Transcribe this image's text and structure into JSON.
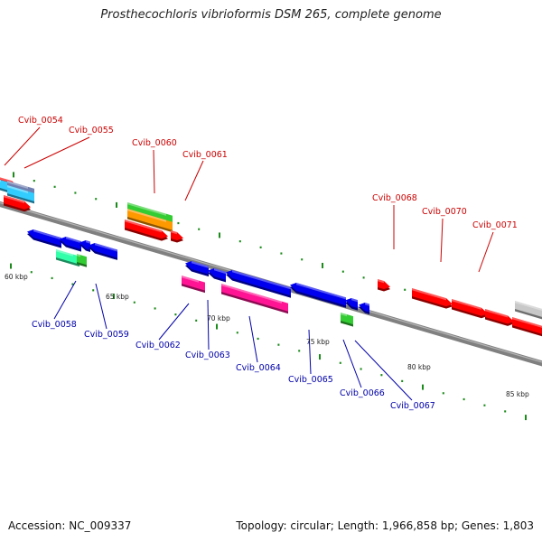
{
  "title": "Prosthecochloris vibrioformis DSM 265, complete genome",
  "footer": {
    "accession": "Accession: NC_009337",
    "topology": "Topology: circular; Length: 1,966,858 bp; Genes: 1,803"
  },
  "colors": {
    "backbone": "#808080",
    "tick": "#1a8a1a",
    "forward_label": "#cc0000",
    "reverse_label": "#0000aa",
    "red": "#ff0000",
    "blue": "#0000ee",
    "magenta": "#ff1493",
    "green": "#33cc33",
    "aqua": "#33ffaa",
    "orange": "#ff9900",
    "cyan": "#33ccff",
    "grey": "#c8c8c8"
  },
  "scale_labels": [
    {
      "text": "60 kbp",
      "kbp": 60
    },
    {
      "text": "65 kbp",
      "kbp": 65
    },
    {
      "text": "70 kbp",
      "kbp": 70
    },
    {
      "text": "75 kbp",
      "kbp": 75
    },
    {
      "text": "80 kbp",
      "kbp": 80
    },
    {
      "text": "85 kbp",
      "kbp": 85
    }
  ],
  "forward_gene_labels": [
    "Cvib_0054",
    "Cvib_0055",
    "Cvib_0060",
    "Cvib_0061",
    "Cvib_0068",
    "Cvib_0070",
    "Cvib_0071"
  ],
  "reverse_gene_labels": [
    "Cvib_0058",
    "Cvib_0059",
    "Cvib_0062",
    "Cvib_0063",
    "Cvib_0064",
    "Cvib_0065",
    "Cvib_0066",
    "Cvib_0067"
  ]
}
